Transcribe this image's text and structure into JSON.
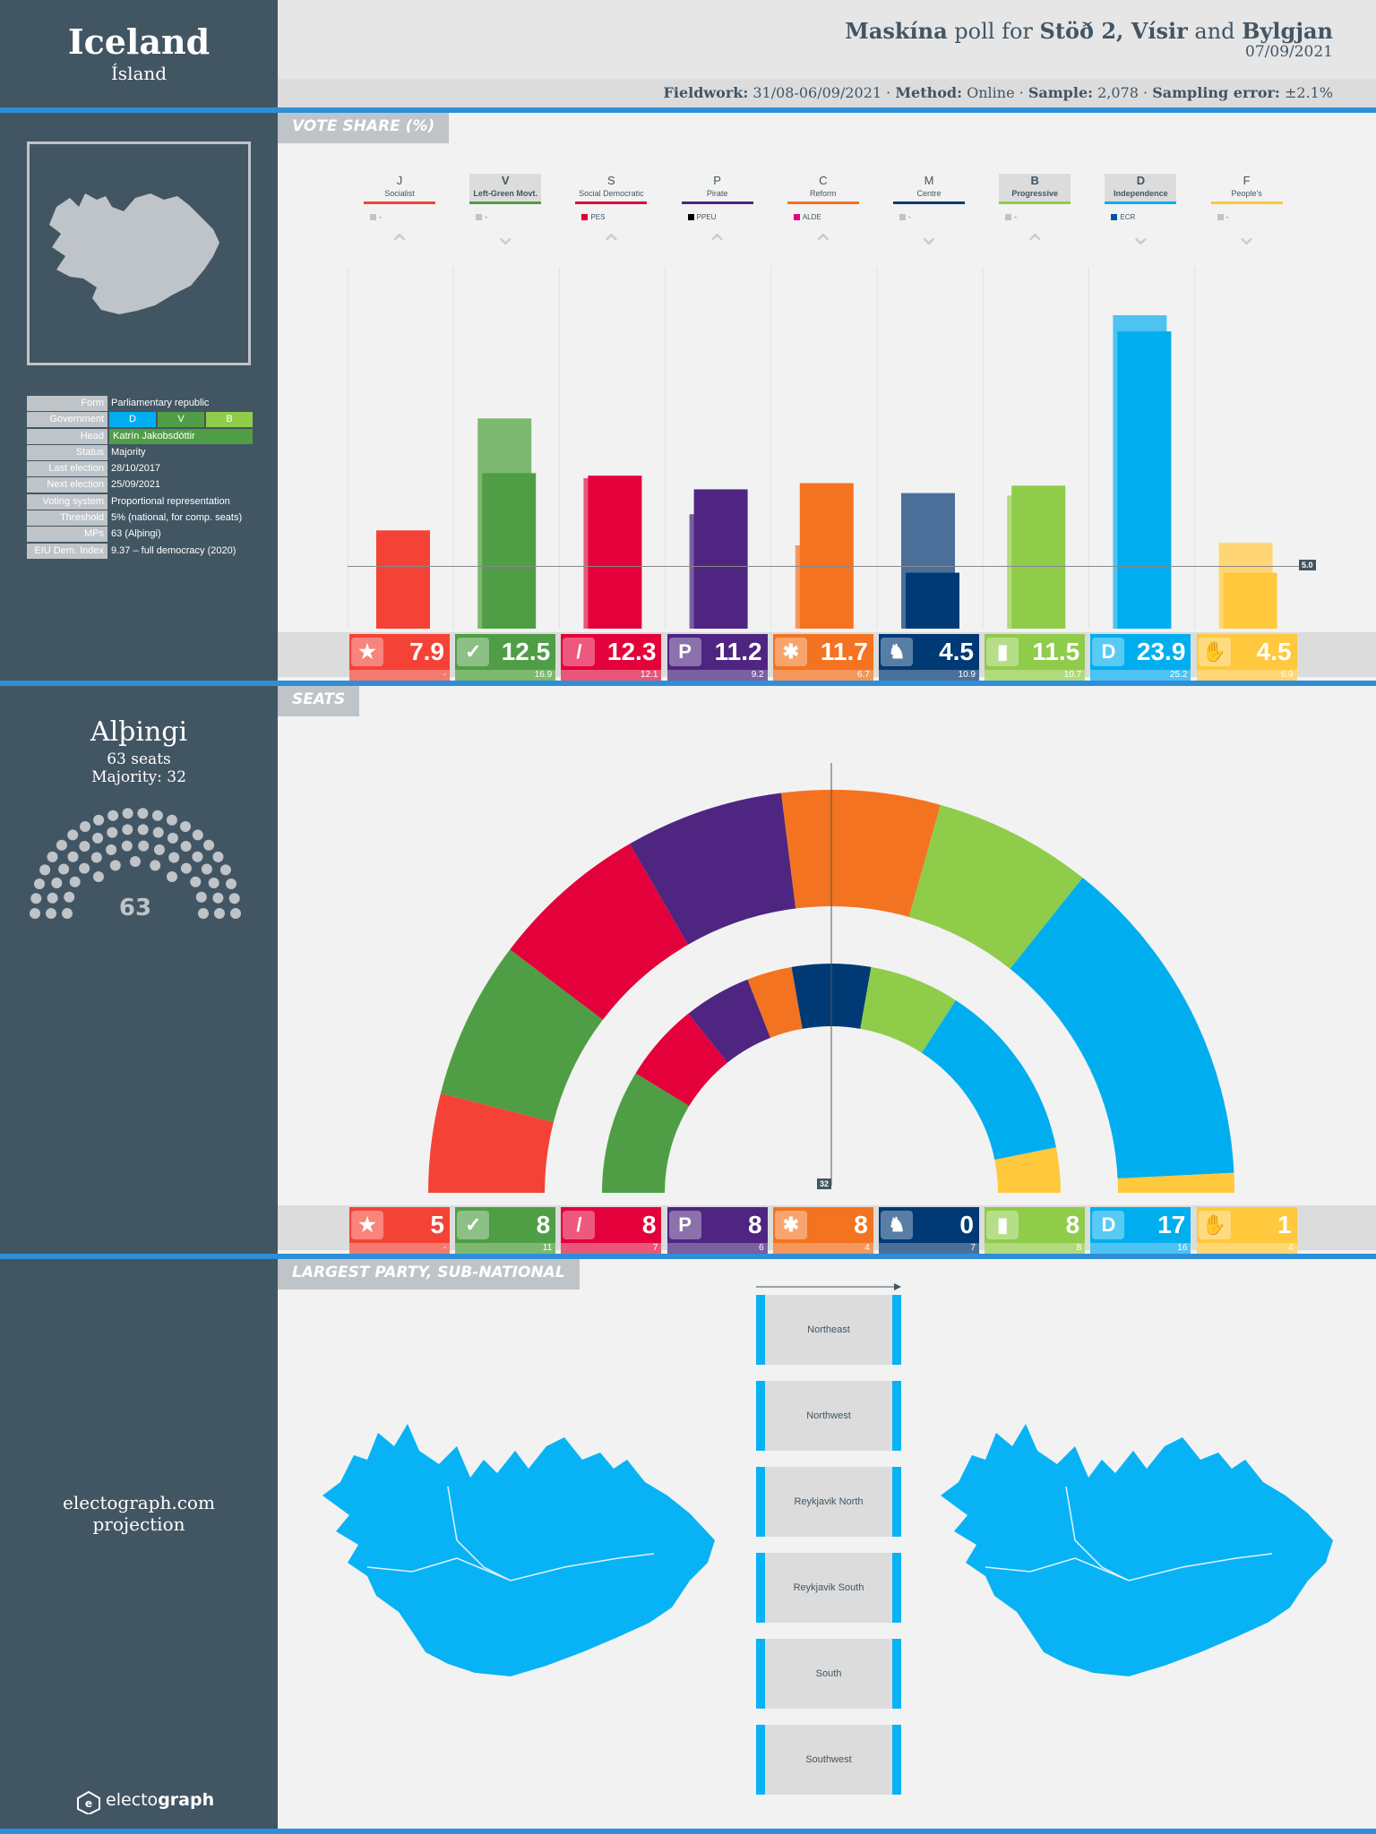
{
  "country": {
    "name": "Iceland",
    "local_name": "Ísland"
  },
  "poll": {
    "pollster": "Maskína",
    "poll_for_word": "poll for",
    "clients": "Stöð 2, Vísir",
    "and_word": "and",
    "client_last": "Bylgjan",
    "date": "07/09/2021",
    "fieldwork_label": "Fieldwork:",
    "fieldwork": "31/08-06/09/2021",
    "method_label": "Method:",
    "method": "Online",
    "sample_label": "Sample:",
    "sample": "2,078",
    "error_label": "Sampling error:",
    "error": "±2.1%"
  },
  "info": [
    {
      "key": "Form",
      "value": "Parliamentary republic"
    },
    {
      "key": "Head",
      "value": "Katrín Jakobsdóttir"
    },
    {
      "key": "Status",
      "value": "Majority"
    },
    {
      "key": "Last election",
      "value": "28/10/2017"
    },
    {
      "key": "Next election",
      "value": "25/09/2021"
    },
    {
      "key": "Voting system",
      "value": "Proportional representation"
    },
    {
      "key": "Threshold",
      "value": "5% (national, for comp. seats)"
    },
    {
      "key": "MPs",
      "value": "63 (Alþingi)"
    },
    {
      "key": "EIU Dem. Index",
      "value": "9.37 – full democracy (2020)"
    }
  ],
  "government": {
    "key": "Government",
    "parties": [
      "D",
      "V",
      "B"
    ]
  },
  "sections": {
    "vote_share": "VOTE SHARE (%)",
    "seats": "SEATS",
    "largest": "LARGEST PARTY, SUB-NATIONAL"
  },
  "parliament": {
    "name": "Alþingi",
    "seats_text": "63 seats",
    "majority_text": "Majority: 32",
    "total": "63"
  },
  "projection": {
    "line1": "electograph.com",
    "line2": "projection"
  },
  "brand": {
    "part1": "electo",
    "part2": "graph"
  },
  "threshold_label": "5.0",
  "majority_label": "32",
  "regions": [
    "Northeast",
    "Northwest",
    "Reykjavik North",
    "Reykjavik South",
    "South",
    "Southwest"
  ],
  "colors": {
    "sidebar": "#425563",
    "accent": "#2e8fd8"
  },
  "chart_data": {
    "type": "bar",
    "title": "VOTE SHARE (%)",
    "threshold": 5.0,
    "categories": [
      "J",
      "V",
      "S",
      "P",
      "C",
      "M",
      "B",
      "D",
      "F"
    ],
    "parties": [
      {
        "abbr": "J",
        "name": "Socialist",
        "eu": "-",
        "eu_color": "#bfc4c8",
        "color": "#f44336",
        "light": "#f47a6f",
        "value": 7.9,
        "prev": "-",
        "prev_value": null,
        "seats": "5",
        "prev_seats": "-",
        "trend": "up",
        "highlight": false,
        "logo": "★"
      },
      {
        "abbr": "V",
        "name": "Left-Green Movt.",
        "eu": "-",
        "eu_color": "#bfc4c8",
        "color": "#4f9e45",
        "light": "#7db870",
        "value": 12.5,
        "prev": "16.9",
        "prev_value": 16.9,
        "seats": "8",
        "prev_seats": "11",
        "trend": "down",
        "highlight": true,
        "logo": "✓"
      },
      {
        "abbr": "S",
        "name": "Social Democratic",
        "eu": "PES",
        "eu_color": "#e4002b",
        "color": "#e4003a",
        "light": "#e8567a",
        "value": 12.3,
        "prev": "12.1",
        "prev_value": 12.1,
        "seats": "8",
        "prev_seats": "7",
        "trend": "up",
        "highlight": false,
        "logo": "/"
      },
      {
        "abbr": "P",
        "name": "Pirate",
        "eu": "PPEU",
        "eu_color": "#000000",
        "color": "#4f2582",
        "light": "#7b5fa0",
        "value": 11.2,
        "prev": "9.2",
        "prev_value": 9.2,
        "seats": "8",
        "prev_seats": "6",
        "trend": "up",
        "highlight": false,
        "logo": "P"
      },
      {
        "abbr": "C",
        "name": "Reform",
        "eu": "ALDE",
        "eu_color": "#e6007e",
        "color": "#f47320",
        "light": "#f4975a",
        "value": 11.7,
        "prev": "6.7",
        "prev_value": 6.7,
        "seats": "8",
        "prev_seats": "4",
        "trend": "up",
        "highlight": false,
        "logo": "✱"
      },
      {
        "abbr": "M",
        "name": "Centre",
        "eu": "-",
        "eu_color": "#bfc4c8",
        "color": "#003a75",
        "light": "#4a7099",
        "value": 4.5,
        "prev": "10.9",
        "prev_value": 10.9,
        "seats": "0",
        "prev_seats": "7",
        "trend": "down",
        "highlight": false,
        "logo": "♞"
      },
      {
        "abbr": "B",
        "name": "Progressive",
        "eu": "-",
        "eu_color": "#bfc4c8",
        "color": "#8fcc4a",
        "light": "#b0da7c",
        "value": 11.5,
        "prev": "10.7",
        "prev_value": 10.7,
        "seats": "8",
        "prev_seats": "8",
        "trend": "up",
        "highlight": true,
        "logo": "▮"
      },
      {
        "abbr": "D",
        "name": "Independence",
        "eu": "ECR",
        "eu_color": "#0054a5",
        "color": "#00aeef",
        "light": "#4cc3f2",
        "value": 23.9,
        "prev": "25.2",
        "prev_value": 25.2,
        "seats": "17",
        "prev_seats": "16",
        "trend": "down",
        "highlight": true,
        "logo": "D"
      },
      {
        "abbr": "F",
        "name": "People's",
        "eu": "-",
        "eu_color": "#bfc4c8",
        "color": "#ffc83d",
        "light": "#ffd673",
        "value": 4.5,
        "prev": "6.9",
        "prev_value": 6.9,
        "seats": "1",
        "prev_seats": "4",
        "trend": "down",
        "highlight": false,
        "logo": "✋"
      }
    ],
    "ylim": [
      0,
      25.2
    ],
    "seats_total": 63,
    "majority": 32
  }
}
